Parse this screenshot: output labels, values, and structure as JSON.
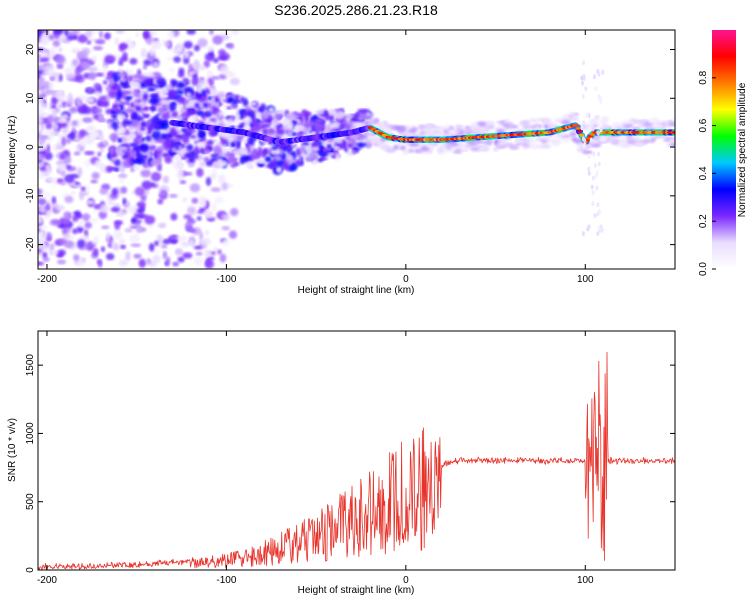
{
  "figure": {
    "title": "S236.2025.286.21.23.R18"
  },
  "chart_data": [
    {
      "type": "heatmap",
      "xlabel": "Height of straight line (km)",
      "ylabel": "Frequency (Hz)",
      "xlim": [
        -205,
        150
      ],
      "ylim": [
        -25,
        24
      ],
      "xticks": [
        -200,
        -100,
        0,
        100
      ],
      "yticks": [
        -20,
        -10,
        0,
        10,
        20
      ],
      "grid": false,
      "colorbar": {
        "label": "Normalized spectral amplitude",
        "range": [
          0,
          1
        ],
        "ticks": [
          "0.0",
          "0.2",
          "0.4",
          "0.6",
          "0.8"
        ],
        "colors": [
          "#ffffff",
          "#e9ddff",
          "#7a28ff",
          "#0000ff",
          "#00c8ff",
          "#00ff00",
          "#ffff00",
          "#ff7a00",
          "#ff0000",
          "#ff1493"
        ]
      },
      "ridge": {
        "x": [
          -130,
          -110,
          -90,
          -70,
          -50,
          -30,
          -20,
          -10,
          0,
          20,
          40,
          60,
          80,
          90,
          95,
          100,
          105,
          110,
          130,
          150
        ],
        "frequency": [
          5,
          4,
          3,
          1,
          2,
          3,
          4,
          2,
          1.5,
          1.5,
          2,
          2.5,
          3,
          4,
          4.5,
          1,
          3,
          3,
          3,
          3
        ]
      }
    },
    {
      "type": "line",
      "xlabel": "Height of straight line (km)",
      "ylabel": "SNR (10 * v/v)",
      "xlim": [
        -205,
        150
      ],
      "ylim": [
        0,
        1750
      ],
      "xticks": [
        -200,
        -100,
        0,
        100
      ],
      "yticks": [
        0,
        500,
        1000,
        1500
      ],
      "grid": false,
      "color": "#e8332b",
      "trend": {
        "x": [
          -205,
          -150,
          -120,
          -100,
          -80,
          -60,
          -40,
          -20,
          0,
          20,
          30,
          40,
          60,
          90,
          98,
          100,
          104,
          108,
          112,
          150
        ],
        "snr": [
          20,
          40,
          60,
          80,
          140,
          230,
          350,
          490,
          650,
          770,
          800,
          800,
          800,
          800,
          800,
          800,
          800,
          800,
          800,
          800
        ]
      }
    }
  ]
}
